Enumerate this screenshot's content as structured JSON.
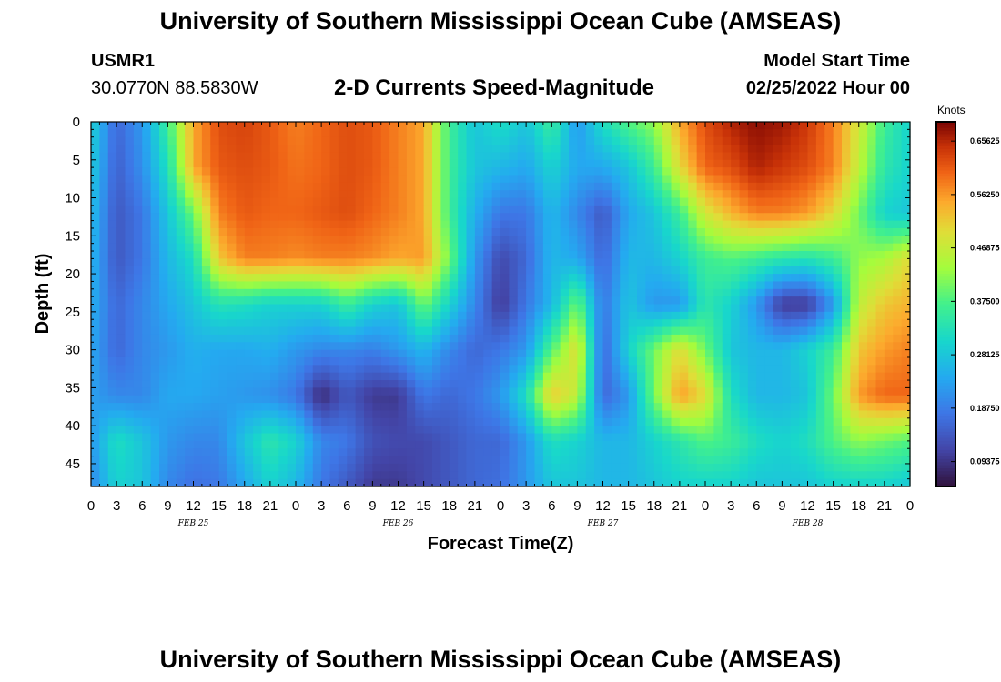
{
  "header": {
    "title_top": "University of Southern Mississippi Ocean Cube (AMSEAS)",
    "station": "USMR1",
    "coords": "30.0770N  88.5830W",
    "subtitle": "2-D Currents Speed-Magnitude",
    "model_start_label": "Model Start Time",
    "model_start_value": "02/25/2022 Hour 00",
    "title_bottom": "University of Southern Mississippi Ocean Cube (AMSEAS)"
  },
  "chart_data": {
    "type": "heatmap",
    "title": "2-D Currents Speed-Magnitude",
    "xlabel": "Forecast Time(Z)",
    "ylabel": "Depth (ft)",
    "xlim": [
      0,
      96
    ],
    "ylim": [
      0,
      48
    ],
    "x_tick_labels": [
      "0",
      "3",
      "6",
      "9",
      "12",
      "15",
      "18",
      "21",
      "0",
      "3",
      "6",
      "9",
      "12",
      "15",
      "18",
      "21",
      "0",
      "3",
      "6",
      "9",
      "12",
      "15",
      "18",
      "21",
      "0",
      "3",
      "6",
      "9",
      "12",
      "15",
      "18",
      "21",
      "0"
    ],
    "y_tick_labels": [
      "0",
      "5",
      "10",
      "15",
      "20",
      "25",
      "30",
      "35",
      "40",
      "45"
    ],
    "y_ticks": [
      0,
      5,
      10,
      15,
      20,
      25,
      30,
      35,
      40,
      45
    ],
    "date_labels": [
      {
        "text": "FEB 25",
        "hour": 12
      },
      {
        "text": "FEB 26",
        "hour": 36
      },
      {
        "text": "FEB 27",
        "hour": 60
      },
      {
        "text": "FEB 28",
        "hour": 84
      }
    ],
    "colorbar": {
      "unit": "Knots",
      "min": 0.05,
      "max": 0.69,
      "ticks": [
        "0.09375",
        "0.18750",
        "0.28125",
        "0.37500",
        "0.46875",
        "0.56250",
        "0.65625"
      ]
    },
    "hours": [
      0,
      3,
      6,
      9,
      12,
      15,
      18,
      21,
      24,
      27,
      30,
      33,
      36,
      39,
      42,
      45,
      48,
      51,
      54,
      57,
      60,
      63,
      66,
      69,
      72,
      75,
      78,
      81,
      84,
      87,
      90,
      93,
      96
    ],
    "depths": [
      0,
      6,
      12,
      18,
      24,
      30,
      36,
      42,
      48
    ],
    "speed_grid": [
      [
        0.3,
        0.16,
        0.22,
        0.36,
        0.55,
        0.62,
        0.63,
        0.61,
        0.58,
        0.6,
        0.62,
        0.61,
        0.58,
        0.55,
        0.36,
        0.28,
        0.32,
        0.28,
        0.36,
        0.22,
        0.32,
        0.38,
        0.42,
        0.55,
        0.62,
        0.66,
        0.68,
        0.67,
        0.64,
        0.58,
        0.48,
        0.36,
        0.3
      ],
      [
        0.29,
        0.15,
        0.21,
        0.32,
        0.55,
        0.61,
        0.62,
        0.61,
        0.59,
        0.6,
        0.62,
        0.61,
        0.58,
        0.55,
        0.36,
        0.28,
        0.26,
        0.24,
        0.3,
        0.24,
        0.24,
        0.28,
        0.36,
        0.5,
        0.6,
        0.62,
        0.66,
        0.64,
        0.62,
        0.58,
        0.46,
        0.34,
        0.3
      ],
      [
        0.27,
        0.14,
        0.18,
        0.28,
        0.4,
        0.58,
        0.61,
        0.6,
        0.6,
        0.61,
        0.62,
        0.6,
        0.58,
        0.55,
        0.36,
        0.25,
        0.18,
        0.18,
        0.26,
        0.2,
        0.14,
        0.24,
        0.28,
        0.36,
        0.48,
        0.54,
        0.58,
        0.58,
        0.56,
        0.5,
        0.4,
        0.3,
        0.28
      ],
      [
        0.26,
        0.14,
        0.18,
        0.26,
        0.32,
        0.52,
        0.58,
        0.58,
        0.57,
        0.58,
        0.58,
        0.57,
        0.55,
        0.56,
        0.4,
        0.22,
        0.12,
        0.16,
        0.26,
        0.24,
        0.16,
        0.26,
        0.26,
        0.3,
        0.36,
        0.38,
        0.36,
        0.34,
        0.33,
        0.36,
        0.42,
        0.44,
        0.5
      ],
      [
        0.25,
        0.16,
        0.2,
        0.24,
        0.28,
        0.33,
        0.32,
        0.3,
        0.3,
        0.3,
        0.36,
        0.3,
        0.28,
        0.4,
        0.3,
        0.2,
        0.1,
        0.18,
        0.26,
        0.4,
        0.18,
        0.28,
        0.22,
        0.22,
        0.34,
        0.3,
        0.22,
        0.1,
        0.1,
        0.22,
        0.46,
        0.52,
        0.54
      ],
      [
        0.24,
        0.16,
        0.2,
        0.22,
        0.25,
        0.24,
        0.24,
        0.25,
        0.22,
        0.2,
        0.2,
        0.19,
        0.22,
        0.26,
        0.2,
        0.16,
        0.18,
        0.22,
        0.38,
        0.5,
        0.16,
        0.3,
        0.4,
        0.5,
        0.4,
        0.28,
        0.26,
        0.26,
        0.3,
        0.36,
        0.52,
        0.56,
        0.58
      ],
      [
        0.23,
        0.2,
        0.2,
        0.24,
        0.24,
        0.23,
        0.22,
        0.21,
        0.18,
        0.08,
        0.14,
        0.1,
        0.1,
        0.18,
        0.16,
        0.18,
        0.22,
        0.32,
        0.52,
        0.46,
        0.16,
        0.22,
        0.4,
        0.56,
        0.5,
        0.32,
        0.26,
        0.26,
        0.28,
        0.4,
        0.56,
        0.6,
        0.6
      ],
      [
        0.22,
        0.32,
        0.28,
        0.22,
        0.2,
        0.2,
        0.28,
        0.34,
        0.3,
        0.2,
        0.18,
        0.13,
        0.12,
        0.12,
        0.14,
        0.16,
        0.16,
        0.22,
        0.32,
        0.3,
        0.26,
        0.26,
        0.3,
        0.34,
        0.38,
        0.36,
        0.32,
        0.3,
        0.32,
        0.38,
        0.42,
        0.4,
        0.38
      ],
      [
        0.2,
        0.3,
        0.28,
        0.2,
        0.17,
        0.18,
        0.24,
        0.3,
        0.26,
        0.18,
        0.14,
        0.1,
        0.1,
        0.12,
        0.14,
        0.16,
        0.17,
        0.22,
        0.28,
        0.28,
        0.26,
        0.26,
        0.28,
        0.3,
        0.3,
        0.3,
        0.28,
        0.28,
        0.28,
        0.3,
        0.3,
        0.3,
        0.28
      ]
    ]
  }
}
